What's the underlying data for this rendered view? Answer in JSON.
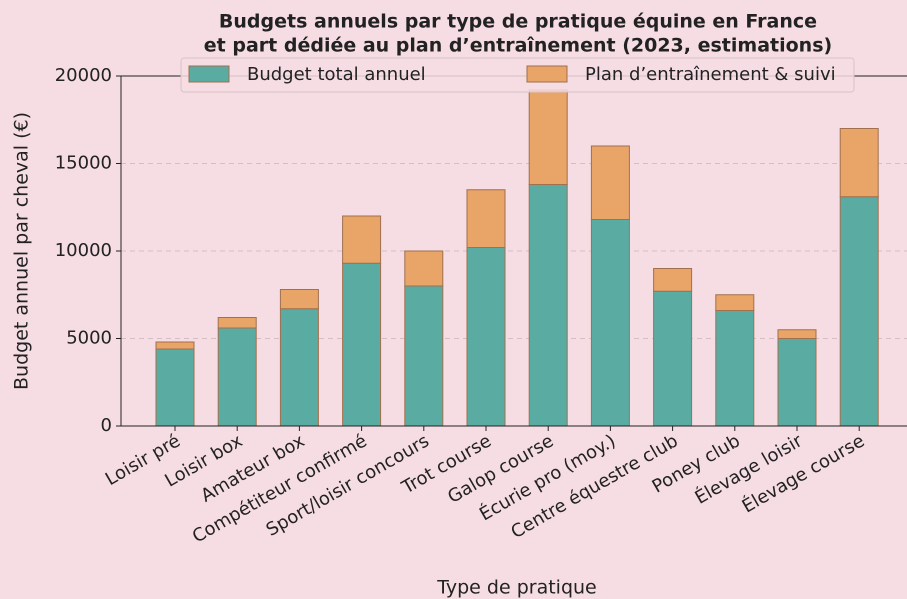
{
  "chart_data": {
    "type": "stacked_bar",
    "title": [
      "Budgets annuels par type de pratique équine en France",
      "et part dédiée au plan d’entraînement (2023, estimations)"
    ],
    "xlabel": "Type de pratique",
    "ylabel": "Budget annuel par cheval (€)",
    "categories": [
      "Loisir pré",
      "Loisir box",
      "Amateur box",
      "Compétiteur confirmé",
      "Sport/loisir concours",
      "Trot course",
      "Galop course",
      "Écurie pro (moy.)",
      "Centre équestre club",
      "Poney club",
      "Élevage loisir",
      "Élevage course"
    ],
    "series": [
      {
        "name": "Budget total annuel",
        "color": "#5aaca3",
        "values": [
          4400,
          5600,
          6700,
          9300,
          8000,
          10200,
          13800,
          11800,
          7700,
          6600,
          5000,
          13100
        ]
      },
      {
        "name": "Plan d’entraînement & suivi",
        "color": "#e9a468",
        "values": [
          400,
          600,
          1100,
          2700,
          2000,
          3300,
          5400,
          4200,
          1300,
          900,
          500,
          3900
        ]
      }
    ],
    "ylim": [
      0,
      20000
    ],
    "yticks": [
      0,
      5000,
      10000,
      15000,
      20000
    ],
    "grid": true,
    "legend": "upper center"
  }
}
